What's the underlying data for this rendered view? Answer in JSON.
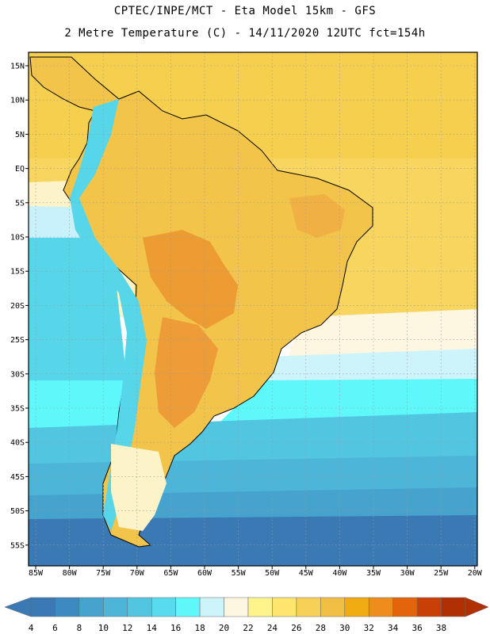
{
  "header": {
    "line1": "CPTEC/INPE/MCT -  Eta Model 15km - GFS",
    "line2": "2 Metre Temperature (C) - 14/11/2020 12UTC fct=154h"
  },
  "map": {
    "lat_labels": [
      "15N",
      "10N",
      "5N",
      "EQ",
      "5S",
      "10S",
      "15S",
      "20S",
      "25S",
      "30S",
      "35S",
      "40S",
      "45S",
      "50S",
      "55S"
    ],
    "lon_labels": [
      "85W",
      "80W",
      "75W",
      "70W",
      "65W",
      "60W",
      "55W",
      "50W",
      "45W",
      "40W",
      "35W",
      "30W",
      "25W",
      "20W"
    ]
  },
  "colorbar": {
    "labels": [
      "4",
      "6",
      "8",
      "10",
      "12",
      "14",
      "16",
      "18",
      "20",
      "22",
      "24",
      "26",
      "28",
      "30",
      "32",
      "34",
      "36",
      "38"
    ],
    "colors": [
      "#3a79b4",
      "#3d8ac0",
      "#46a3cd",
      "#4db6d8",
      "#52c5e0",
      "#58dbee",
      "#5ef8fa",
      "#cdf3fb",
      "#fdf6e0",
      "#fff48c",
      "#fde56e",
      "#f7d157",
      "#f1bf43",
      "#f1ab13",
      "#ee8d1e",
      "#e3640a",
      "#c94006",
      "#b03003"
    ]
  }
}
